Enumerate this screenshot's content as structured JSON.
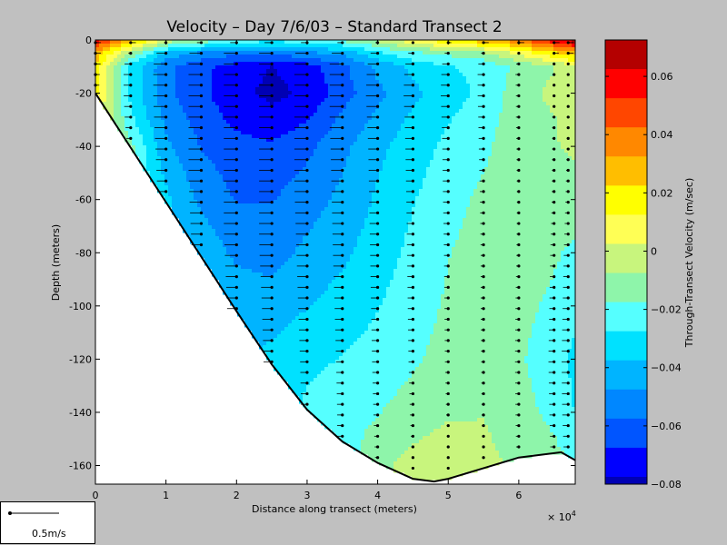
{
  "chart_data": {
    "type": "heatmap",
    "title": "Velocity – Day 7/6/03 – Standard Transect 2",
    "xlabel": "Distance along transect (meters)",
    "ylabel": "Depth (meters)",
    "x_multiplier_label": "× 10",
    "x_multiplier_exponent": "4",
    "xlim": [
      0,
      6.8
    ],
    "ylim": [
      -167,
      0
    ],
    "x_ticks": [
      0,
      1,
      2,
      3,
      4,
      5,
      6
    ],
    "y_ticks": [
      0,
      -20,
      -40,
      -60,
      -80,
      -100,
      -120,
      -140,
      -160
    ],
    "colorbar": {
      "label": "Through-Transect Velocity (m/sec)",
      "range": [
        -0.08,
        0.0725
      ],
      "ticks": [
        0.06,
        0.04,
        0.02,
        0,
        -0.02,
        -0.04,
        -0.06,
        -0.08
      ],
      "levels": [
        {
          "from": 0.0625,
          "to": 0.0725,
          "color": "#b40000"
        },
        {
          "from": 0.0525,
          "to": 0.0625,
          "color": "#ff0000"
        },
        {
          "from": 0.0425,
          "to": 0.0525,
          "color": "#ff4600"
        },
        {
          "from": 0.0325,
          "to": 0.0425,
          "color": "#ff8800"
        },
        {
          "from": 0.0225,
          "to": 0.0325,
          "color": "#ffbe00"
        },
        {
          "from": 0.0125,
          "to": 0.0225,
          "color": "#ffff00"
        },
        {
          "from": 0.0025,
          "to": 0.0125,
          "color": "#ffff55"
        },
        {
          "from": -0.0075,
          "to": 0.0025,
          "color": "#c8f57d"
        },
        {
          "from": -0.0175,
          "to": -0.0075,
          "color": "#8ef5aa"
        },
        {
          "from": -0.0275,
          "to": -0.0175,
          "color": "#55ffff"
        },
        {
          "from": -0.0375,
          "to": -0.0275,
          "color": "#00e1ff"
        },
        {
          "from": -0.0475,
          "to": -0.0375,
          "color": "#00b4ff"
        },
        {
          "from": -0.0575,
          "to": -0.0475,
          "color": "#0087ff"
        },
        {
          "from": -0.0675,
          "to": -0.0575,
          "color": "#0055ff"
        },
        {
          "from": -0.0775,
          "to": -0.0675,
          "color": "#0000ff"
        },
        {
          "from": -0.0875,
          "to": -0.0775,
          "color": "#0000b4"
        }
      ]
    },
    "bottom_profile": [
      [
        0,
        -20
      ],
      [
        1,
        -61
      ],
      [
        2,
        -102
      ],
      [
        2.5,
        -122
      ],
      [
        3,
        -139
      ],
      [
        3.5,
        -151
      ],
      [
        4,
        -159
      ],
      [
        4.5,
        -165
      ],
      [
        4.8,
        -166
      ],
      [
        5,
        -165
      ],
      [
        5.5,
        -161
      ],
      [
        6,
        -157
      ],
      [
        6.6,
        -155
      ],
      [
        6.8,
        -158
      ]
    ],
    "velocity_grid": {
      "x": [
        0,
        0.5,
        1,
        1.5,
        2,
        2.5,
        3,
        3.5,
        4,
        4.5,
        5,
        5.5,
        6,
        6.5,
        6.8
      ],
      "depth": [
        0,
        -5,
        -10,
        -20,
        -30,
        -40,
        -60,
        -80,
        -100,
        -120,
        -140,
        -160
      ],
      "values": [
        [
          0.06,
          0.03,
          0.0,
          -0.01,
          -0.02,
          -0.025,
          -0.02,
          -0.015,
          -0.005,
          0.01,
          0.02,
          0.03,
          0.04,
          0.06,
          0.07
        ],
        [
          0.03,
          -0.01,
          -0.04,
          -0.05,
          -0.055,
          -0.055,
          -0.05,
          -0.045,
          -0.03,
          -0.02,
          -0.015,
          -0.01,
          0.005,
          0.02,
          0.03
        ],
        [
          0.02,
          -0.03,
          -0.055,
          -0.065,
          -0.072,
          -0.078,
          -0.072,
          -0.06,
          -0.045,
          -0.035,
          -0.028,
          -0.025,
          -0.015,
          -0.008,
          0.0
        ],
        [
          0.015,
          -0.03,
          -0.055,
          -0.065,
          -0.075,
          -0.08,
          -0.076,
          -0.062,
          -0.05,
          -0.04,
          -0.032,
          -0.025,
          -0.012,
          -0.005,
          -0.002
        ],
        [
          0.01,
          -0.025,
          -0.05,
          -0.062,
          -0.07,
          -0.074,
          -0.068,
          -0.055,
          -0.045,
          -0.035,
          -0.028,
          -0.022,
          -0.012,
          -0.008,
          -0.005
        ],
        [
          null,
          -0.015,
          -0.045,
          -0.058,
          -0.064,
          -0.066,
          -0.06,
          -0.05,
          -0.04,
          -0.032,
          -0.025,
          -0.02,
          -0.01,
          -0.008,
          -0.006
        ],
        [
          null,
          null,
          -0.035,
          -0.05,
          -0.058,
          -0.058,
          -0.052,
          -0.045,
          -0.036,
          -0.028,
          -0.022,
          -0.015,
          -0.008,
          -0.01,
          -0.012
        ],
        [
          null,
          null,
          null,
          -0.04,
          -0.05,
          -0.052,
          -0.045,
          -0.04,
          -0.032,
          -0.025,
          -0.018,
          -0.012,
          -0.01,
          -0.016,
          -0.02
        ],
        [
          null,
          null,
          null,
          null,
          -0.04,
          -0.042,
          -0.038,
          -0.033,
          -0.028,
          -0.022,
          -0.016,
          -0.012,
          -0.014,
          -0.02,
          -0.025
        ],
        [
          null,
          null,
          null,
          null,
          null,
          -0.035,
          -0.03,
          -0.027,
          -0.024,
          -0.019,
          -0.014,
          -0.01,
          -0.016,
          -0.024,
          -0.03
        ],
        [
          null,
          null,
          null,
          null,
          null,
          null,
          -0.025,
          -0.022,
          -0.018,
          -0.013,
          -0.009,
          -0.008,
          -0.014,
          -0.02,
          -0.028
        ],
        [
          null,
          null,
          null,
          null,
          null,
          null,
          null,
          null,
          -0.01,
          -0.004,
          0.0,
          -0.004,
          -0.01,
          -0.014,
          -0.018
        ]
      ]
    },
    "ensemble_x": [
      0,
      0.5,
      1,
      1.5,
      2,
      2.5,
      3,
      3.5,
      4,
      4.5,
      5,
      5.5,
      6,
      6.5,
      6.7
    ],
    "vector_scale": {
      "label": "0.5m/s",
      "value": 0.5
    }
  }
}
